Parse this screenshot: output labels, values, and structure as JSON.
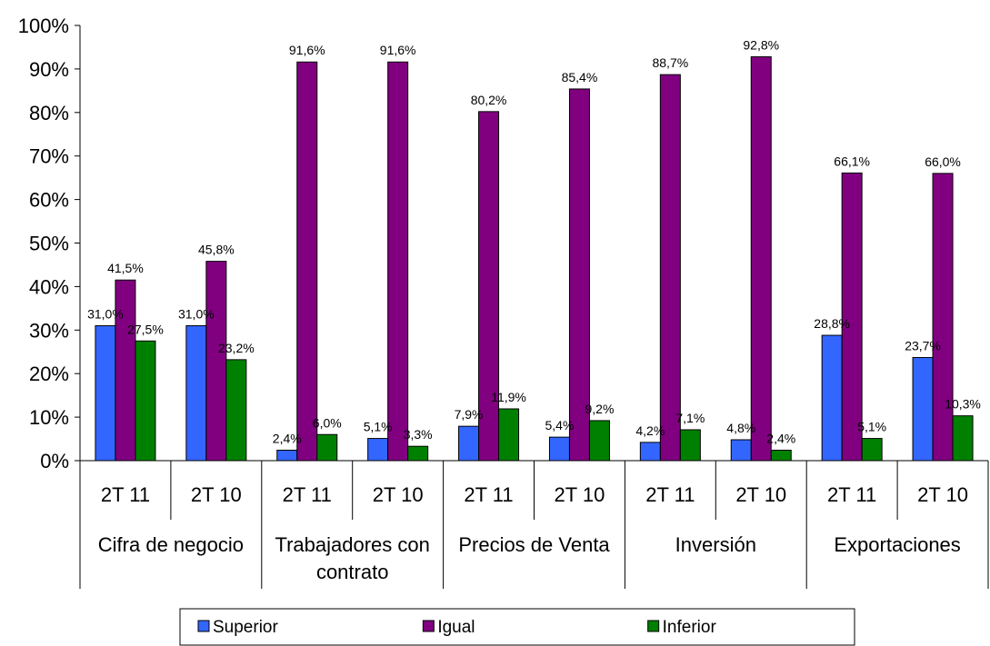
{
  "chart_data": {
    "type": "bar",
    "title": "",
    "xlabel": "",
    "ylabel": "",
    "ylim": [
      0,
      100
    ],
    "yticks": [
      "0%",
      "10%",
      "20%",
      "30%",
      "40%",
      "50%",
      "60%",
      "70%",
      "80%",
      "90%",
      "100%"
    ],
    "groups": [
      {
        "label": "Cifra de negocio",
        "categories": [
          "2T 11",
          "2T 10"
        ]
      },
      {
        "label": "Trabajadores con contrato",
        "categories": [
          "2T 11",
          "2T 10"
        ]
      },
      {
        "label": "Precios de Venta",
        "categories": [
          "2T 11",
          "2T 10"
        ]
      },
      {
        "label": "Inversión",
        "categories": [
          "2T 11",
          "2T 10"
        ]
      },
      {
        "label": "Exportaciones",
        "categories": [
          "2T 11",
          "2T 10"
        ]
      }
    ],
    "categories": [
      "2T 11",
      "2T 10",
      "2T 11",
      "2T 10",
      "2T 11",
      "2T 10",
      "2T 11",
      "2T 10",
      "2T 11",
      "2T 10"
    ],
    "series": [
      {
        "name": "Superior",
        "color": "#3366FF",
        "values": [
          31.0,
          31.0,
          2.4,
          5.1,
          7.9,
          5.4,
          4.2,
          4.8,
          28.8,
          23.7
        ],
        "labels": [
          "31,0%",
          "31,0%",
          "2,4%",
          "5,1%",
          "7,9%",
          "5,4%",
          "4,2%",
          "4,8%",
          "28,8%",
          "23,7%"
        ]
      },
      {
        "name": "Igual",
        "color": "#800080",
        "values": [
          41.5,
          45.8,
          91.6,
          91.6,
          80.2,
          85.4,
          88.7,
          92.8,
          66.1,
          66.0
        ],
        "labels": [
          "41,5%",
          "45,8%",
          "91,6%",
          "91,6%",
          "80,2%",
          "85,4%",
          "88,7%",
          "92,8%",
          "66,1%",
          "66,0%"
        ]
      },
      {
        "name": "Inferior",
        "color": "#008000",
        "values": [
          27.5,
          23.2,
          6.0,
          3.3,
          11.9,
          9.2,
          7.1,
          2.4,
          5.1,
          10.3
        ],
        "labels": [
          "27,5%",
          "23,2%",
          "6,0%",
          "3,3%",
          "11,9%",
          "9,2%",
          "7,1%",
          "2,4%",
          "5,1%",
          "10,3%"
        ]
      }
    ],
    "grid": false,
    "legend": "bottom"
  }
}
